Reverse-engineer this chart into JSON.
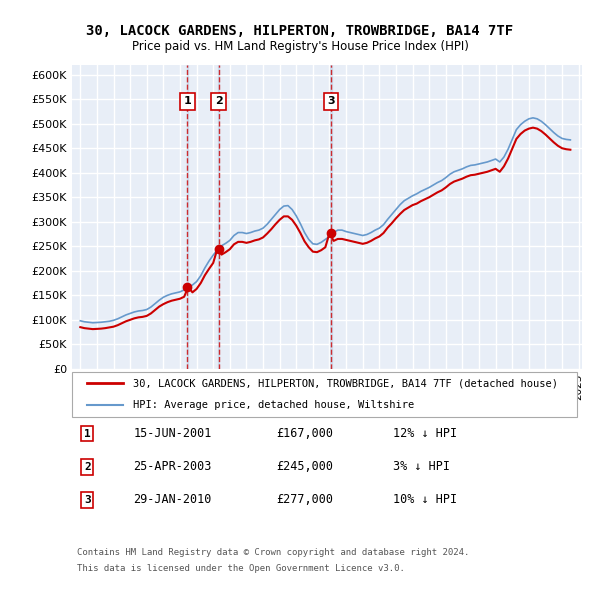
{
  "title": "30, LACOCK GARDENS, HILPERTON, TROWBRIDGE, BA14 7TF",
  "subtitle": "Price paid vs. HM Land Registry's House Price Index (HPI)",
  "ylabel": "",
  "ylim": [
    0,
    620000
  ],
  "yticks": [
    0,
    50000,
    100000,
    150000,
    200000,
    250000,
    300000,
    350000,
    400000,
    450000,
    500000,
    550000,
    600000
  ],
  "ytick_labels": [
    "£0",
    "£50K",
    "£100K",
    "£150K",
    "£200K",
    "£250K",
    "£300K",
    "£350K",
    "£400K",
    "£450K",
    "£500K",
    "£550K",
    "£600K"
  ],
  "background_color": "#ffffff",
  "plot_bg_color": "#e8eef7",
  "grid_color": "#ffffff",
  "sale_color": "#cc0000",
  "hpi_color": "#6699cc",
  "sales": [
    {
      "num": 1,
      "date": "15-JUN-2001",
      "price": 167000,
      "year": 2001.45,
      "hpi_pct": "12%"
    },
    {
      "num": 2,
      "date": "25-APR-2003",
      "price": 245000,
      "year": 2003.32,
      "hpi_pct": "3%"
    },
    {
      "num": 3,
      "date": "29-JAN-2010",
      "price": 277000,
      "year": 2010.08,
      "hpi_pct": "10%"
    }
  ],
  "legend_property": "30, LACOCK GARDENS, HILPERTON, TROWBRIDGE, BA14 7TF (detached house)",
  "legend_hpi": "HPI: Average price, detached house, Wiltshire",
  "footer1": "Contains HM Land Registry data © Crown copyright and database right 2024.",
  "footer2": "This data is licensed under the Open Government Licence v3.0.",
  "hpi_data_x": [
    1995.0,
    1995.25,
    1995.5,
    1995.75,
    1996.0,
    1996.25,
    1996.5,
    1996.75,
    1997.0,
    1997.25,
    1997.5,
    1997.75,
    1998.0,
    1998.25,
    1998.5,
    1998.75,
    1999.0,
    1999.25,
    1999.5,
    1999.75,
    2000.0,
    2000.25,
    2000.5,
    2000.75,
    2001.0,
    2001.25,
    2001.5,
    2001.75,
    2002.0,
    2002.25,
    2002.5,
    2002.75,
    2003.0,
    2003.25,
    2003.5,
    2003.75,
    2004.0,
    2004.25,
    2004.5,
    2004.75,
    2005.0,
    2005.25,
    2005.5,
    2005.75,
    2006.0,
    2006.25,
    2006.5,
    2006.75,
    2007.0,
    2007.25,
    2007.5,
    2007.75,
    2008.0,
    2008.25,
    2008.5,
    2008.75,
    2009.0,
    2009.25,
    2009.5,
    2009.75,
    2010.0,
    2010.25,
    2010.5,
    2010.75,
    2011.0,
    2011.25,
    2011.5,
    2011.75,
    2012.0,
    2012.25,
    2012.5,
    2012.75,
    2013.0,
    2013.25,
    2013.5,
    2013.75,
    2014.0,
    2014.25,
    2014.5,
    2014.75,
    2015.0,
    2015.25,
    2015.5,
    2015.75,
    2016.0,
    2016.25,
    2016.5,
    2016.75,
    2017.0,
    2017.25,
    2017.5,
    2017.75,
    2018.0,
    2018.25,
    2018.5,
    2018.75,
    2019.0,
    2019.25,
    2019.5,
    2019.75,
    2020.0,
    2020.25,
    2020.5,
    2020.75,
    2021.0,
    2021.25,
    2021.5,
    2021.75,
    2022.0,
    2022.25,
    2022.5,
    2022.75,
    2023.0,
    2023.25,
    2023.5,
    2023.75,
    2024.0,
    2024.25,
    2024.5
  ],
  "hpi_data_y": [
    98000,
    96000,
    95000,
    94000,
    94500,
    95000,
    96000,
    97000,
    99000,
    102000,
    106000,
    110000,
    113000,
    116000,
    118000,
    119000,
    121000,
    126000,
    133000,
    140000,
    146000,
    150000,
    153000,
    155000,
    157000,
    161000,
    166000,
    171000,
    178000,
    190000,
    206000,
    220000,
    232000,
    243000,
    251000,
    256000,
    262000,
    272000,
    278000,
    278000,
    276000,
    278000,
    281000,
    283000,
    287000,
    295000,
    305000,
    315000,
    325000,
    332000,
    333000,
    325000,
    312000,
    296000,
    278000,
    264000,
    255000,
    254000,
    258000,
    264000,
    270000,
    278000,
    283000,
    283000,
    280000,
    278000,
    276000,
    274000,
    272000,
    274000,
    278000,
    283000,
    287000,
    294000,
    305000,
    315000,
    325000,
    335000,
    343000,
    348000,
    353000,
    357000,
    362000,
    366000,
    370000,
    375000,
    380000,
    384000,
    390000,
    397000,
    402000,
    405000,
    408000,
    412000,
    415000,
    416000,
    418000,
    420000,
    422000,
    425000,
    428000,
    422000,
    432000,
    448000,
    468000,
    488000,
    498000,
    505000,
    510000,
    512000,
    510000,
    505000,
    498000,
    490000,
    482000,
    475000,
    470000,
    468000,
    467000
  ],
  "property_data_x": [
    1995.0,
    1995.25,
    1995.5,
    1995.75,
    1996.0,
    1996.25,
    1996.5,
    1996.75,
    1997.0,
    1997.25,
    1997.5,
    1997.75,
    1998.0,
    1998.25,
    1998.5,
    1998.75,
    1999.0,
    1999.25,
    1999.5,
    1999.75,
    2000.0,
    2000.25,
    2000.5,
    2000.75,
    2001.0,
    2001.25,
    2001.5,
    2001.75,
    2002.0,
    2002.25,
    2002.5,
    2002.75,
    2003.0,
    2003.25,
    2003.5,
    2003.75,
    2004.0,
    2004.25,
    2004.5,
    2004.75,
    2005.0,
    2005.25,
    2005.5,
    2005.75,
    2006.0,
    2006.25,
    2006.5,
    2006.75,
    2007.0,
    2007.25,
    2007.5,
    2007.75,
    2008.0,
    2008.25,
    2008.5,
    2008.75,
    2009.0,
    2009.25,
    2009.5,
    2009.75,
    2010.0,
    2010.25,
    2010.5,
    2010.75,
    2011.0,
    2011.25,
    2011.5,
    2011.75,
    2012.0,
    2012.25,
    2012.5,
    2012.75,
    2013.0,
    2013.25,
    2013.5,
    2013.75,
    2014.0,
    2014.25,
    2014.5,
    2014.75,
    2015.0,
    2015.25,
    2015.5,
    2015.75,
    2016.0,
    2016.25,
    2016.5,
    2016.75,
    2017.0,
    2017.25,
    2017.5,
    2017.75,
    2018.0,
    2018.25,
    2018.5,
    2018.75,
    2019.0,
    2019.25,
    2019.5,
    2019.75,
    2020.0,
    2020.25,
    2020.5,
    2020.75,
    2021.0,
    2021.25,
    2021.5,
    2021.75,
    2022.0,
    2022.25,
    2022.5,
    2022.75,
    2023.0,
    2023.25,
    2023.5,
    2023.75,
    2024.0,
    2024.25,
    2024.5
  ],
  "property_data_y": [
    85000,
    83000,
    82000,
    81000,
    81500,
    82000,
    83000,
    84500,
    86000,
    89000,
    93000,
    97000,
    100000,
    103000,
    105000,
    106000,
    108000,
    113000,
    120000,
    127000,
    132000,
    136000,
    139000,
    141000,
    143000,
    147000,
    167000,
    156000,
    163000,
    175000,
    191000,
    204000,
    216000,
    245000,
    233000,
    238000,
    244000,
    254000,
    259000,
    259000,
    257000,
    259000,
    262000,
    264000,
    268000,
    276000,
    285000,
    295000,
    304000,
    311000,
    311000,
    304000,
    292000,
    277000,
    260000,
    248000,
    239000,
    238000,
    242000,
    248000,
    277000,
    261000,
    265000,
    265000,
    263000,
    261000,
    259000,
    257000,
    255000,
    257000,
    261000,
    266000,
    270000,
    277000,
    288000,
    297000,
    307000,
    316000,
    324000,
    329000,
    334000,
    337000,
    342000,
    346000,
    350000,
    355000,
    360000,
    364000,
    370000,
    377000,
    382000,
    385000,
    388000,
    392000,
    395000,
    396000,
    398000,
    400000,
    402000,
    405000,
    408000,
    402000,
    413000,
    429000,
    449000,
    469000,
    479000,
    486000,
    490000,
    492000,
    490000,
    485000,
    478000,
    470000,
    462000,
    455000,
    450000,
    448000,
    447000
  ]
}
